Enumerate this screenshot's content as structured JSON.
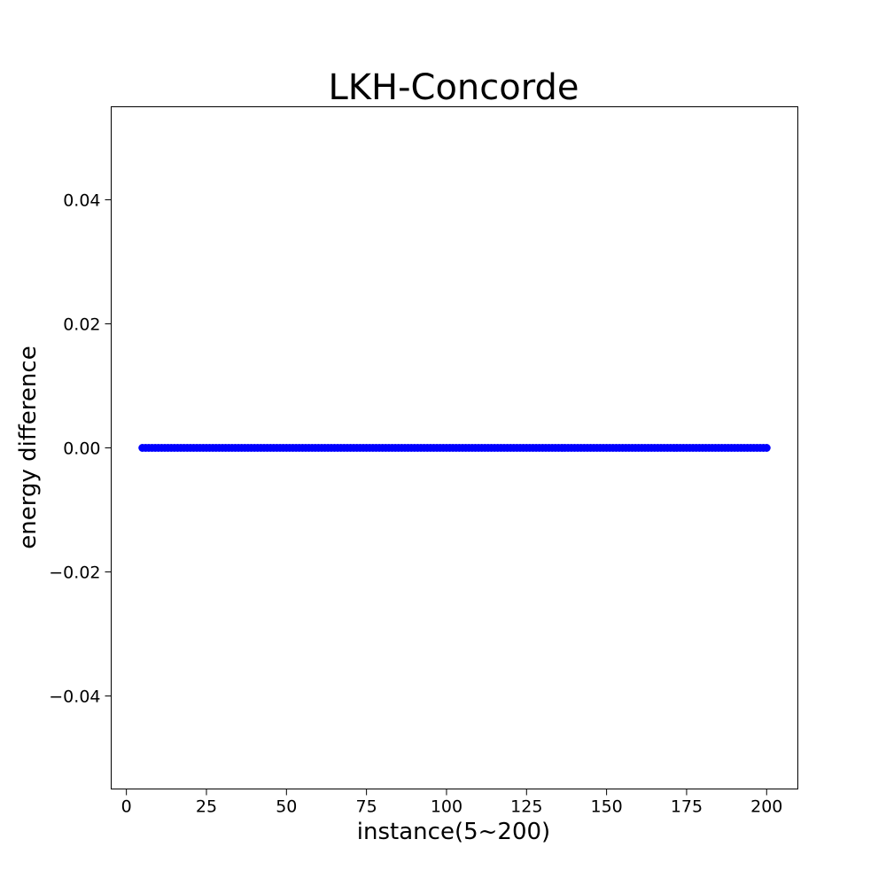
{
  "chart_data": {
    "type": "scatter",
    "title": "LKH-Concorde",
    "xlabel": "instance(5~200)",
    "ylabel": "energy difference",
    "xlim": [
      -4.75,
      209.75
    ],
    "ylim": [
      -0.055,
      0.055
    ],
    "x_ticks": [
      0,
      25,
      50,
      75,
      100,
      125,
      150,
      175,
      200
    ],
    "x_tick_labels": [
      "0",
      "25",
      "50",
      "75",
      "100",
      "125",
      "150",
      "175",
      "200"
    ],
    "y_ticks": [
      0.04,
      0.02,
      0.0,
      -0.02,
      -0.04
    ],
    "y_tick_labels": [
      "0.04",
      "0.02",
      "0.00",
      "−0.02",
      "−0.04"
    ],
    "grid": false,
    "marker_color": "#0000ff",
    "series": [
      {
        "x_start": 5,
        "x_end": 200,
        "x_step": 1,
        "y_constant": 0.0
      }
    ]
  }
}
